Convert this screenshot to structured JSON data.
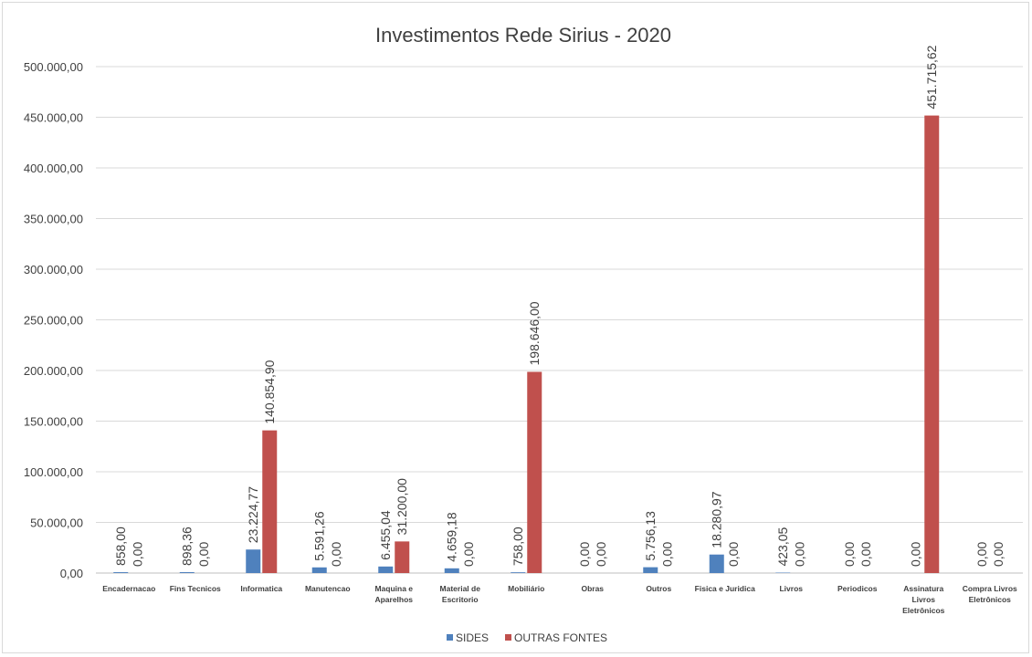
{
  "chart_data": {
    "type": "bar",
    "title": "Investimentos Rede Sirius - 2020",
    "categories": [
      "Encadernacao",
      "Fins Tecnicos",
      "Informatica",
      "Manutencao",
      "Maquina e Aparelhos",
      "Material de Escritorio",
      "Mobiliário",
      "Obras",
      "Outros",
      "Fisica e Juridica",
      "Livros",
      "Periodicos",
      "Assinatura Livros Eletrônicos",
      "Compra Livros Eletrônicos"
    ],
    "category_lines": [
      [
        "Encadernacao"
      ],
      [
        "Fins Tecnicos"
      ],
      [
        "Informatica"
      ],
      [
        "Manutencao"
      ],
      [
        "Maquina e",
        "Aparelhos"
      ],
      [
        "Material de",
        "Escritorio"
      ],
      [
        "Mobiliário"
      ],
      [
        "Obras"
      ],
      [
        "Outros"
      ],
      [
        "Fisica e Juridica"
      ],
      [
        "Livros"
      ],
      [
        "Periodicos"
      ],
      [
        "Assinatura",
        "Livros",
        "Eletrônicos"
      ],
      [
        "Compra Livros",
        "Eletrônicos"
      ]
    ],
    "series": [
      {
        "name": "SIDES",
        "color": "#4f81bd",
        "values": [
          858.0,
          898.36,
          23224.77,
          5591.26,
          6455.04,
          4659.18,
          758.0,
          0.0,
          5756.13,
          18280.97,
          423.05,
          0.0,
          0.0,
          0.0
        ],
        "labels": [
          "858,00",
          "898,36",
          "23.224,77",
          "5.591,26",
          "6.455,04",
          "4.659,18",
          "758,00",
          "0,00",
          "5.756,13",
          "18.280,97",
          "423,05",
          "0,00",
          "0,00",
          "0,00"
        ]
      },
      {
        "name": "OUTRAS FONTES",
        "color": "#c0504d",
        "values": [
          0.0,
          0.0,
          140854.9,
          0.0,
          31200.0,
          0.0,
          198646.0,
          0.0,
          0.0,
          0.0,
          0.0,
          0.0,
          451715.62,
          0.0
        ],
        "labels": [
          "0,00",
          "0,00",
          "140.854,90",
          "0,00",
          "31.200,00",
          "0,00",
          "198.646,00",
          "0,00",
          "0,00",
          "0,00",
          "0,00",
          "0,00",
          "451.715,62",
          "0,00"
        ]
      }
    ],
    "ylim": [
      0,
      500000
    ],
    "yticks": [
      0,
      50000,
      100000,
      150000,
      200000,
      250000,
      300000,
      350000,
      400000,
      450000,
      500000
    ],
    "ytick_labels": [
      "0,00",
      "50.000,00",
      "100.000,00",
      "150.000,00",
      "200.000,00",
      "250.000,00",
      "300.000,00",
      "350.000,00",
      "400.000,00",
      "450.000,00",
      "500.000,00"
    ],
    "grid": true,
    "legend_position": "bottom-center"
  }
}
